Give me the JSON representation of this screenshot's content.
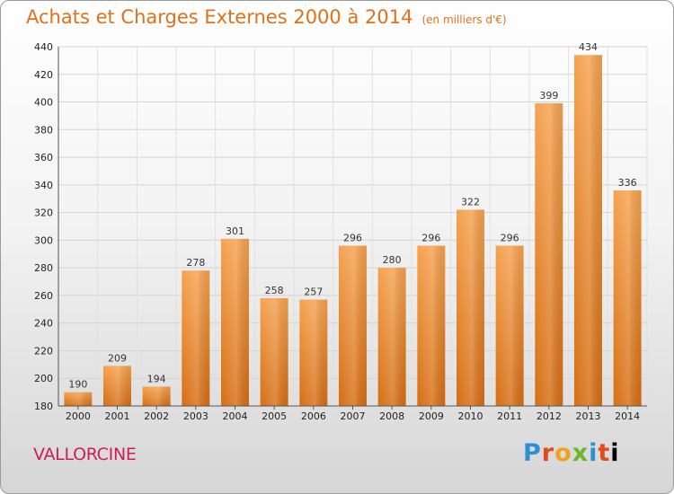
{
  "chart_data": {
    "type": "bar",
    "title": "Achats et Charges Externes 2000 à 2014",
    "subtitle": "(en milliers d'€)",
    "categories": [
      "2000",
      "2001",
      "2002",
      "2003",
      "2004",
      "2005",
      "2006",
      "2007",
      "2008",
      "2009",
      "2010",
      "2011",
      "2012",
      "2013",
      "2014"
    ],
    "values": [
      190,
      209,
      194,
      278,
      301,
      258,
      257,
      296,
      280,
      296,
      322,
      296,
      399,
      434,
      336
    ],
    "ylim": [
      180,
      440
    ],
    "yticks": [
      180,
      200,
      220,
      240,
      260,
      280,
      300,
      320,
      340,
      360,
      380,
      400,
      420,
      440
    ],
    "grid": true,
    "bar_color": "#f08a2c",
    "bar_color_dark": "#d86f17"
  },
  "footer": {
    "place": "VALLORCINE",
    "logo_letters": [
      "P",
      "r",
      "o",
      "x",
      "i",
      "t",
      "i"
    ]
  }
}
